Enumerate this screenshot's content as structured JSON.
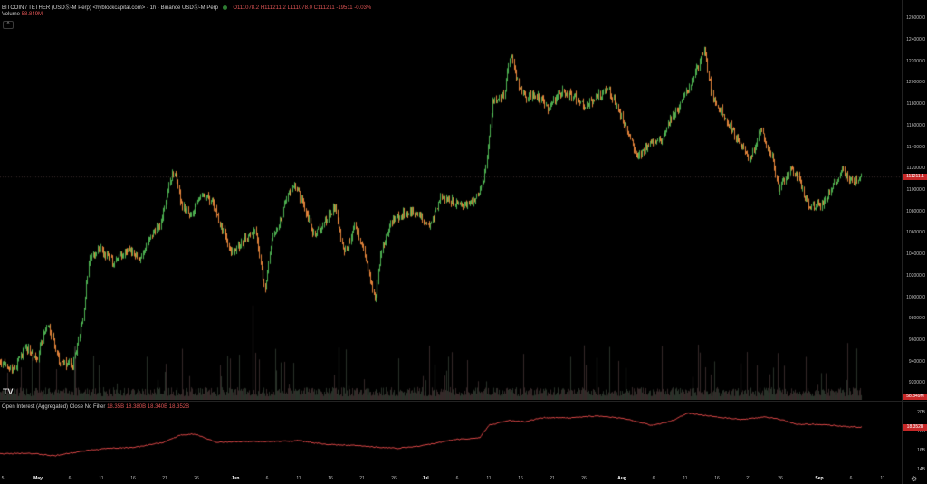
{
  "header": {
    "symbol": "BITCOIN / TETHER (USDⓈ-M Perp) <hyblockcapital.com>",
    "interval": "1h",
    "exchange": "Binance USDⓈ-M Perp",
    "ohlc": "O111078.2 H111211.2 L111078.0 C111211 -19511 -0.03%",
    "volume_label": "Volume",
    "volume_value": "58.849M",
    "collapse_glyph": "^"
  },
  "oi_legend": {
    "label": "Open Interest (Aggregated) Close No Filter",
    "values": "18.35B 18.380B 18.340B 18.352B"
  },
  "price_axis": {
    "labels": [
      "126000.0",
      "124000.0",
      "122000.0",
      "120000.0",
      "118000.0",
      "116000.0",
      "114000.0",
      "112000.0",
      "110000.0",
      "108000.0",
      "106000.0",
      "104000.0",
      "102000.0",
      "100000.0",
      "98000.0",
      "96000.0",
      "94000.0",
      "92000.0"
    ],
    "current_price": "111211.1",
    "volume_tag": "58.849M"
  },
  "oi_axis": {
    "labels": [
      "20B",
      "18B",
      "16B",
      "14B"
    ],
    "current_tag": "18.352B"
  },
  "date_axis": {
    "labels": [
      {
        "t": "5",
        "b": false
      },
      {
        "t": "May",
        "b": true
      },
      {
        "t": "6",
        "b": false
      },
      {
        "t": "11",
        "b": false
      },
      {
        "t": "16",
        "b": false
      },
      {
        "t": "21",
        "b": false
      },
      {
        "t": "26",
        "b": false
      },
      {
        "t": "Jun",
        "b": true
      },
      {
        "t": "6",
        "b": false
      },
      {
        "t": "11",
        "b": false
      },
      {
        "t": "16",
        "b": false
      },
      {
        "t": "21",
        "b": false
      },
      {
        "t": "26",
        "b": false
      },
      {
        "t": "Jul",
        "b": true
      },
      {
        "t": "6",
        "b": false
      },
      {
        "t": "11",
        "b": false
      },
      {
        "t": "16",
        "b": false
      },
      {
        "t": "21",
        "b": false
      },
      {
        "t": "26",
        "b": false
      },
      {
        "t": "Aug",
        "b": true
      },
      {
        "t": "6",
        "b": false
      },
      {
        "t": "11",
        "b": false
      },
      {
        "t": "16",
        "b": false
      },
      {
        "t": "21",
        "b": false
      },
      {
        "t": "26",
        "b": false
      },
      {
        "t": "Sep",
        "b": true
      },
      {
        "t": "6",
        "b": false
      },
      {
        "t": "11",
        "b": false
      }
    ]
  },
  "logo": "TV",
  "settings_icon": "gear-icon",
  "colors": {
    "up": "#4caf50",
    "down": "#e0823a",
    "oi_line": "#e04848",
    "price_tag": "#c62828"
  },
  "chart_data": {
    "type": "line",
    "price_anchors": [
      [
        0,
        94000
      ],
      [
        14,
        93200
      ],
      [
        28,
        95500
      ],
      [
        40,
        94200
      ],
      [
        52,
        97600
      ],
      [
        66,
        94000
      ],
      [
        80,
        93600
      ],
      [
        92,
        98500
      ],
      [
        98,
        103800
      ],
      [
        110,
        104500
      ],
      [
        125,
        103200
      ],
      [
        140,
        104500
      ],
      [
        155,
        103600
      ],
      [
        168,
        105800
      ],
      [
        178,
        107200
      ],
      [
        186,
        110500
      ],
      [
        193,
        111900
      ],
      [
        200,
        108600
      ],
      [
        212,
        107500
      ],
      [
        222,
        109800
      ],
      [
        234,
        108800
      ],
      [
        244,
        106500
      ],
      [
        256,
        104200
      ],
      [
        270,
        105400
      ],
      [
        282,
        106100
      ],
      [
        292,
        100800
      ],
      [
        300,
        105300
      ],
      [
        310,
        107400
      ],
      [
        318,
        109800
      ],
      [
        326,
        110300
      ],
      [
        336,
        108400
      ],
      [
        346,
        105800
      ],
      [
        356,
        106800
      ],
      [
        370,
        108500
      ],
      [
        380,
        104000
      ],
      [
        392,
        106600
      ],
      [
        404,
        103600
      ],
      [
        414,
        99400
      ],
      [
        420,
        104200
      ],
      [
        432,
        107000
      ],
      [
        446,
        107900
      ],
      [
        460,
        107900
      ],
      [
        476,
        106600
      ],
      [
        486,
        109300
      ],
      [
        500,
        108900
      ],
      [
        515,
        108500
      ],
      [
        528,
        109400
      ],
      [
        536,
        111800
      ],
      [
        544,
        118300
      ],
      [
        556,
        118800
      ],
      [
        564,
        122800
      ],
      [
        572,
        119800
      ],
      [
        580,
        118600
      ],
      [
        594,
        118700
      ],
      [
        606,
        117600
      ],
      [
        620,
        119200
      ],
      [
        636,
        118600
      ],
      [
        648,
        117800
      ],
      [
        660,
        118800
      ],
      [
        672,
        119400
      ],
      [
        684,
        117200
      ],
      [
        694,
        115300
      ],
      [
        704,
        112800
      ],
      [
        716,
        114400
      ],
      [
        730,
        114800
      ],
      [
        740,
        116600
      ],
      [
        752,
        118000
      ],
      [
        760,
        119400
      ],
      [
        768,
        121000
      ],
      [
        778,
        122900
      ],
      [
        786,
        118800
      ],
      [
        796,
        117400
      ],
      [
        806,
        116000
      ],
      [
        816,
        114300
      ],
      [
        828,
        112800
      ],
      [
        840,
        115600
      ],
      [
        852,
        113200
      ],
      [
        860,
        110100
      ],
      [
        874,
        112000
      ],
      [
        882,
        111000
      ],
      [
        892,
        108600
      ],
      [
        908,
        108600
      ],
      [
        920,
        110400
      ],
      [
        930,
        111800
      ],
      [
        940,
        110700
      ],
      [
        952,
        111200
      ]
    ],
    "oi_anchors": [
      [
        0,
        15.6
      ],
      [
        30,
        15.7
      ],
      [
        60,
        15.4
      ],
      [
        90,
        15.9
      ],
      [
        120,
        16.2
      ],
      [
        150,
        16.3
      ],
      [
        180,
        16.8
      ],
      [
        200,
        17.6
      ],
      [
        215,
        17.7
      ],
      [
        240,
        16.8
      ],
      [
        270,
        16.9
      ],
      [
        300,
        16.9
      ],
      [
        330,
        17.0
      ],
      [
        360,
        16.6
      ],
      [
        390,
        16.5
      ],
      [
        420,
        16.3
      ],
      [
        440,
        16.2
      ],
      [
        460,
        16.4
      ],
      [
        480,
        16.7
      ],
      [
        500,
        17.1
      ],
      [
        530,
        17.3
      ],
      [
        540,
        18.6
      ],
      [
        560,
        19.1
      ],
      [
        580,
        19.0
      ],
      [
        600,
        19.4
      ],
      [
        630,
        19.4
      ],
      [
        660,
        19.6
      ],
      [
        690,
        19.3
      ],
      [
        720,
        18.6
      ],
      [
        740,
        19.0
      ],
      [
        760,
        19.9
      ],
      [
        790,
        19.5
      ],
      [
        820,
        19.2
      ],
      [
        845,
        19.5
      ],
      [
        860,
        19.3
      ],
      [
        880,
        18.7
      ],
      [
        910,
        18.7
      ],
      [
        930,
        18.5
      ],
      [
        952,
        18.4
      ]
    ],
    "price_range": [
      90600,
      127200
    ],
    "oi_range": [
      13.4,
      21.0
    ],
    "current_price": 111211.1
  }
}
